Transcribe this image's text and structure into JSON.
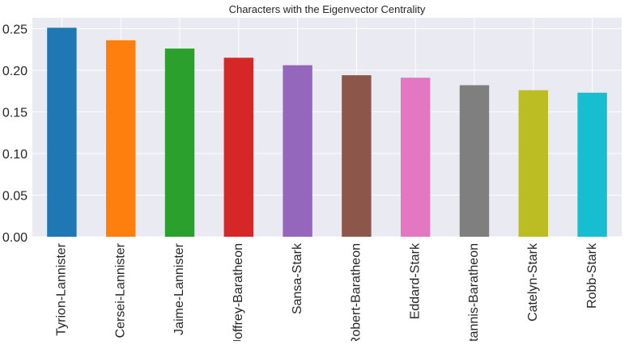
{
  "chart_data": {
    "type": "bar",
    "title": "Characters with the Eigenvector Centrality",
    "xlabel": "",
    "ylabel": "",
    "categories": [
      "Tyrion-Lannister",
      "Cersei-Lannister",
      "Jaime-Lannister",
      "Joffrey-Baratheon",
      "Sansa-Stark",
      "Robert-Baratheon",
      "Eddard-Stark",
      "Stannis-Baratheon",
      "Catelyn-Stark",
      "Robb-Stark"
    ],
    "values": [
      0.251,
      0.236,
      0.226,
      0.215,
      0.206,
      0.194,
      0.191,
      0.182,
      0.176,
      0.173
    ],
    "colors": [
      "#1f77b4",
      "#ff7f0e",
      "#2ca02c",
      "#d62728",
      "#9467bd",
      "#8c564b",
      "#e377c2",
      "#7f7f7f",
      "#bcbd22",
      "#17becf"
    ],
    "ylim": [
      0,
      0.263
    ],
    "yticks": [
      0.0,
      0.05,
      0.1,
      0.15,
      0.2,
      0.25
    ],
    "ytick_labels": [
      "0.00",
      "0.05",
      "0.10",
      "0.15",
      "0.20",
      "0.25"
    ],
    "grid": true,
    "background": "#eaeaf2",
    "legend": "none"
  }
}
